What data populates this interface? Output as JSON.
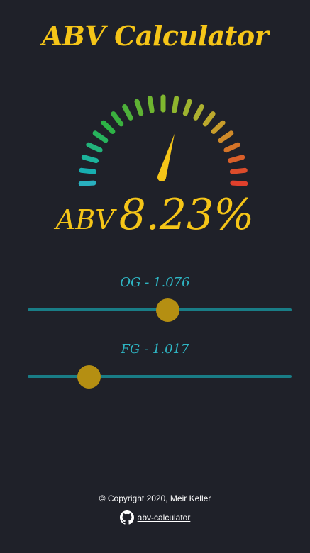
{
  "app": {
    "title": "ABV Calculator"
  },
  "gauge": {
    "min_abv": 0,
    "max_abv": 14,
    "needle_value": 8.23,
    "tick_count": 21,
    "tick_colors": [
      "#29b0bf",
      "#17aeb0",
      "#1cb39b",
      "#22b47b",
      "#27b35c",
      "#2db346",
      "#3ab13e",
      "#4db13a",
      "#5fb334",
      "#6eb530",
      "#7fb72f",
      "#8fb62e",
      "#9eb42f",
      "#adb130",
      "#bca92d",
      "#c89d2b",
      "#cf8a29",
      "#d57428",
      "#d95f29",
      "#dc4c2b",
      "#e0402c"
    ],
    "needle_color": "#f5c518"
  },
  "readout": {
    "label": "ABV",
    "value": "8.23%"
  },
  "sliders": [
    {
      "label": "OG - 1.076",
      "fraction": 0.53
    },
    {
      "label": "FG - 1.017",
      "fraction": 0.23
    }
  ],
  "footer": {
    "copyright": "© Copyright 2020, Meir Keller",
    "link_text": "abv-calculator",
    "link_icon": "github-icon"
  },
  "colors": {
    "background": "#1f2129",
    "accent": "#f5c518",
    "slider_label": "#2eb6c4",
    "track": "#197d86",
    "thumb": "#b58f12"
  }
}
